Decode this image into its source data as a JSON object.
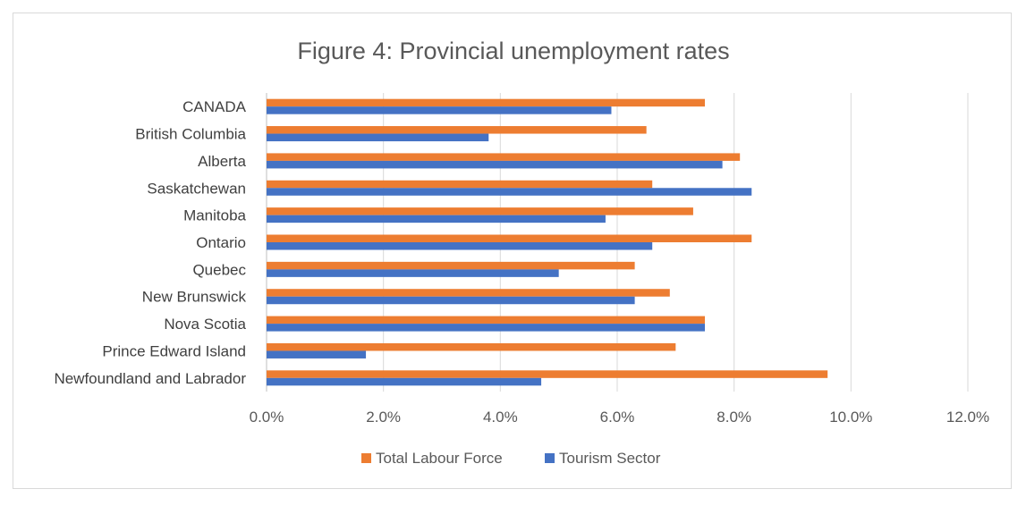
{
  "chart_data": {
    "type": "bar",
    "orientation": "horizontal",
    "title": "Figure 4: Provincial unemployment rates",
    "categories": [
      "CANADA",
      "British Columbia",
      "Alberta",
      "Saskatchewan",
      "Manitoba",
      "Ontario",
      "Quebec",
      "New Brunswick",
      "Nova Scotia",
      "Prince Edward Island",
      "Newfoundland and Labrador"
    ],
    "series": [
      {
        "name": "Total Labour Force",
        "color": "#ED7D31",
        "values": [
          7.5,
          6.5,
          8.1,
          6.6,
          7.3,
          8.3,
          6.3,
          6.9,
          7.5,
          7.0,
          9.6
        ]
      },
      {
        "name": "Tourism Sector",
        "color": "#4472C4",
        "values": [
          5.9,
          3.8,
          7.8,
          8.3,
          5.8,
          6.6,
          5.0,
          6.3,
          7.5,
          1.7,
          4.7
        ]
      }
    ],
    "xlim": [
      0,
      12
    ],
    "x_ticks": [
      0,
      2,
      4,
      6,
      8,
      10,
      12
    ],
    "x_tick_labels": [
      "0.0%",
      "2.0%",
      "4.0%",
      "6.0%",
      "8.0%",
      "10.0%",
      "12.0%"
    ],
    "unit": "%",
    "grid": true,
    "legend_position": "bottom",
    "xlabel": "",
    "ylabel": ""
  },
  "colors": {
    "gridline": "#d9d9d9",
    "axis_line": "#bfbfbf",
    "border": "#d9d9d9"
  }
}
